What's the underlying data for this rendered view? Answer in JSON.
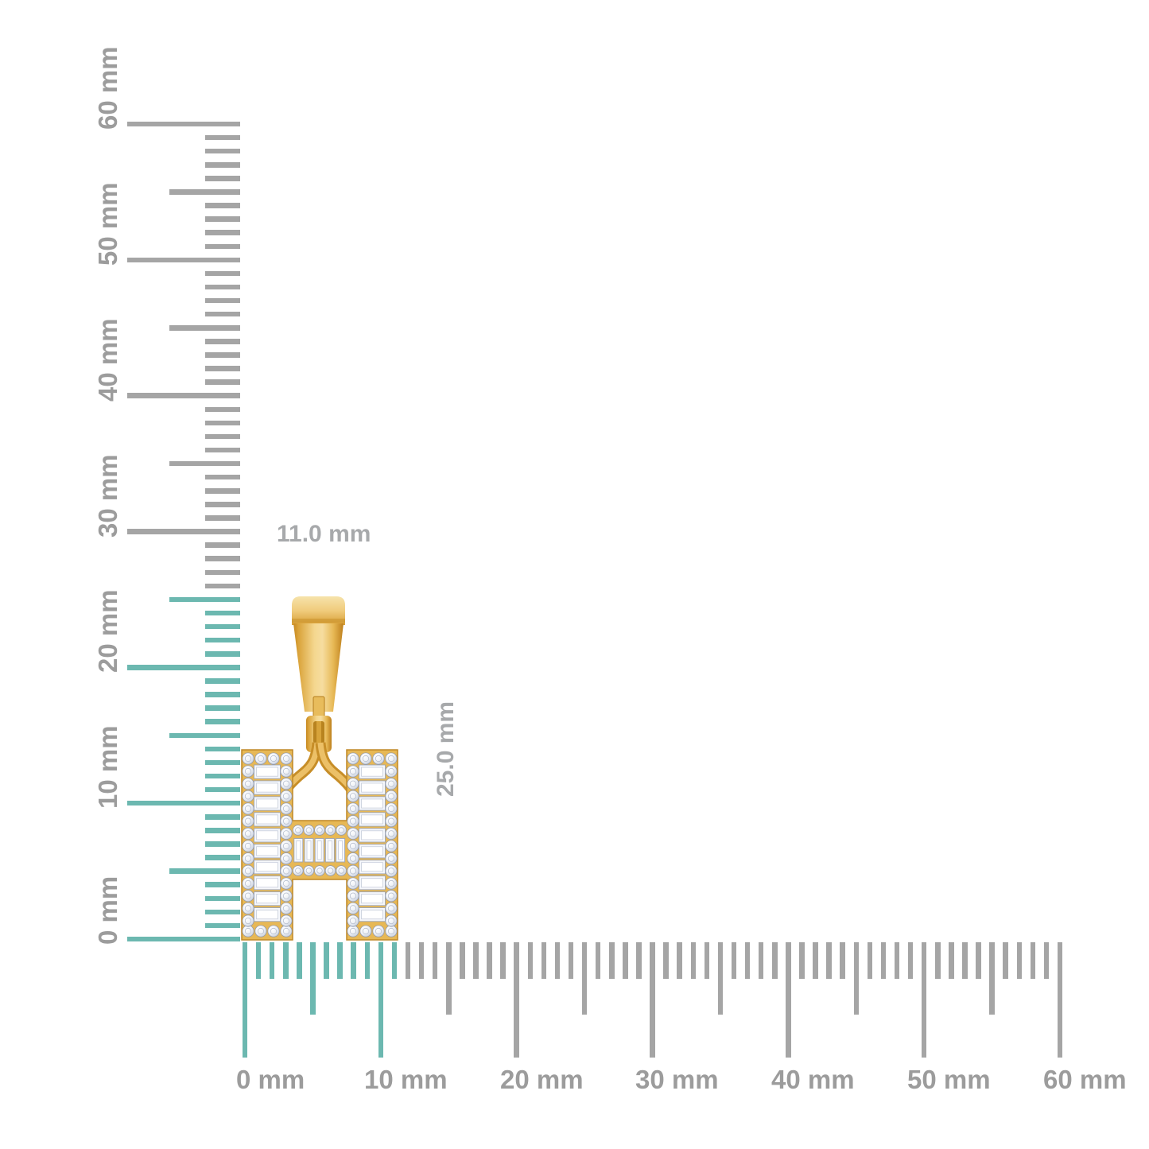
{
  "page": {
    "background": "#ffffff",
    "description_kind": "jewelry-size-reference-image"
  },
  "pendant": {
    "letter_shape": "H",
    "metal": "yellow-gold",
    "stones": "white-diamonds"
  },
  "dimension_labels": {
    "width": "11.0 mm",
    "height": "25.0 mm"
  },
  "rulers": {
    "unit": "mm",
    "vertical": {
      "min_mm": 0,
      "max_mm": 60,
      "major_step_mm": 10,
      "half_step_mm": 5,
      "minor_step_mm": 1,
      "major_labels": [
        "0 mm",
        "10 mm",
        "20 mm",
        "30 mm",
        "40 mm",
        "50 mm",
        "60 mm"
      ],
      "highlighted_extent_mm": 25
    },
    "horizontal": {
      "min_mm": 0,
      "max_mm": 60,
      "major_step_mm": 10,
      "half_step_mm": 5,
      "minor_step_mm": 1,
      "major_labels": [
        "0 mm",
        "10 mm",
        "20 mm",
        "30 mm",
        "40 mm",
        "50 mm",
        "60 mm"
      ],
      "highlighted_extent_mm": 11
    },
    "colors": {
      "tick_gray": "#a5a5a5",
      "tick_highlight_teal": "#6cb8b0",
      "label_gray": "#9c9c9c"
    }
  },
  "colors": {
    "dimension_label_gray": "#a7a9ab",
    "gold_light": "#f6dd9f",
    "gold_mid": "#eec162",
    "gold_dark": "#c58d26",
    "diamond_light": "#ffffff",
    "diamond_shadow": "#a7afc1"
  }
}
